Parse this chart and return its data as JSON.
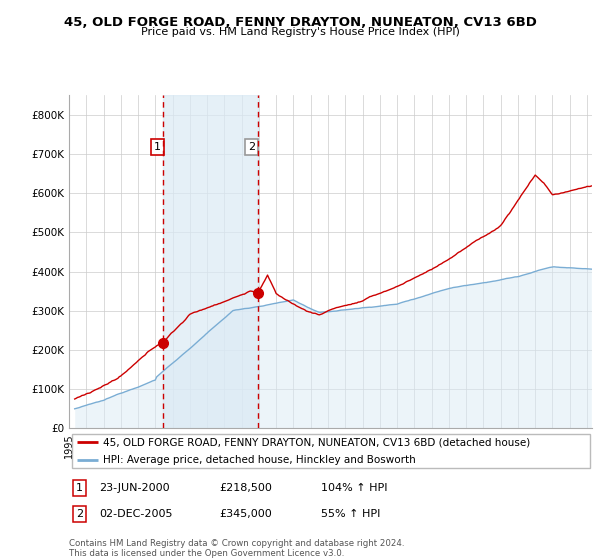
{
  "title": "45, OLD FORGE ROAD, FENNY DRAYTON, NUNEATON, CV13 6BD",
  "subtitle": "Price paid vs. HM Land Registry's House Price Index (HPI)",
  "ylim": [
    0,
    850000
  ],
  "yticks": [
    0,
    100000,
    200000,
    300000,
    400000,
    500000,
    600000,
    700000,
    800000
  ],
  "ytick_labels": [
    "£0",
    "£100K",
    "£200K",
    "£300K",
    "£400K",
    "£500K",
    "£600K",
    "£700K",
    "£800K"
  ],
  "red_line_label": "45, OLD FORGE ROAD, FENNY DRAYTON, NUNEATON, CV13 6BD (detached house)",
  "blue_line_label": "HPI: Average price, detached house, Hinckley and Bosworth",
  "sale1_label": "1",
  "sale1_date": "23-JUN-2000",
  "sale1_price": "£218,500",
  "sale1_hpi": "104% ↑ HPI",
  "sale2_label": "2",
  "sale2_date": "02-DEC-2005",
  "sale2_price": "£345,000",
  "sale2_hpi": "55% ↑ HPI",
  "footer": "Contains HM Land Registry data © Crown copyright and database right 2024.\nThis data is licensed under the Open Government Licence v3.0.",
  "red_color": "#cc0000",
  "blue_color": "#7aadd4",
  "fill_color": "#daeaf5",
  "dashed_color": "#cc0000",
  "sale1_year": 2000.47,
  "sale2_year": 2005.92,
  "sale1_price_y": 218500,
  "sale2_price_y": 345000,
  "xlim_left": 1995.3,
  "xlim_right": 2025.3
}
